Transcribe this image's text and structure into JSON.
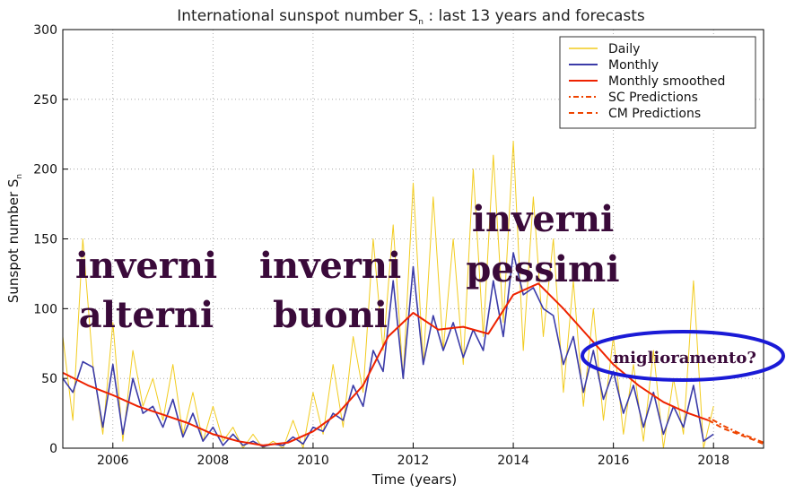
{
  "chart_data": {
    "type": "line",
    "title": "International sunspot number S",
    "title_subscript": "n",
    "title_suffix": " : last 13 years and forecasts",
    "xlabel": "Time (years)",
    "ylabel": "Sunspot number S",
    "ylabel_subscript": "n",
    "xlim": [
      2005.0,
      2019.0
    ],
    "ylim": [
      0,
      300
    ],
    "xticks": [
      2006,
      2008,
      2010,
      2012,
      2014,
      2016,
      2018
    ],
    "yticks": [
      0,
      50,
      100,
      150,
      200,
      250,
      300
    ],
    "grid": true,
    "legend_position": "top-right",
    "colors": {
      "daily": "#f2cc1f",
      "monthly": "#3b3ba8",
      "smoothed": "#ee2200",
      "predictions": "#ee4400",
      "annotation_ellipse": "#1a1ad6",
      "overlay_text": "#3a0a3a"
    },
    "series": [
      {
        "name": "Daily",
        "style": "thin-yellow",
        "x": [
          2005.0,
          2005.2,
          2005.4,
          2005.6,
          2005.8,
          2006.0,
          2006.2,
          2006.4,
          2006.6,
          2006.8,
          2007.0,
          2007.2,
          2007.4,
          2007.6,
          2007.8,
          2008.0,
          2008.2,
          2008.4,
          2008.6,
          2008.8,
          2009.0,
          2009.2,
          2009.4,
          2009.6,
          2009.8,
          2010.0,
          2010.2,
          2010.4,
          2010.6,
          2010.8,
          2011.0,
          2011.2,
          2011.4,
          2011.6,
          2011.8,
          2012.0,
          2012.2,
          2012.4,
          2012.6,
          2012.8,
          2013.0,
          2013.2,
          2013.4,
          2013.6,
          2013.8,
          2014.0,
          2014.2,
          2014.4,
          2014.6,
          2014.8,
          2015.0,
          2015.2,
          2015.4,
          2015.6,
          2015.8,
          2016.0,
          2016.2,
          2016.4,
          2016.6,
          2016.8,
          2017.0,
          2017.2,
          2017.4,
          2017.6,
          2017.8,
          2018.0
        ],
        "values": [
          80,
          20,
          150,
          60,
          10,
          90,
          5,
          70,
          30,
          50,
          20,
          60,
          10,
          40,
          5,
          30,
          5,
          15,
          0,
          10,
          0,
          5,
          0,
          20,
          0,
          40,
          10,
          60,
          15,
          80,
          40,
          150,
          70,
          160,
          50,
          190,
          60,
          180,
          70,
          150,
          60,
          200,
          80,
          210,
          90,
          220,
          70,
          180,
          80,
          150,
          40,
          120,
          30,
          100,
          20,
          80,
          10,
          60,
          5,
          70,
          0,
          50,
          10,
          120,
          0,
          30
        ]
      },
      {
        "name": "Monthly",
        "style": "blue",
        "x": [
          2005.0,
          2005.2,
          2005.4,
          2005.6,
          2005.8,
          2006.0,
          2006.2,
          2006.4,
          2006.6,
          2006.8,
          2007.0,
          2007.2,
          2007.4,
          2007.6,
          2007.8,
          2008.0,
          2008.2,
          2008.4,
          2008.6,
          2008.8,
          2009.0,
          2009.2,
          2009.4,
          2009.6,
          2009.8,
          2010.0,
          2010.2,
          2010.4,
          2010.6,
          2010.8,
          2011.0,
          2011.2,
          2011.4,
          2011.6,
          2011.8,
          2012.0,
          2012.2,
          2012.4,
          2012.6,
          2012.8,
          2013.0,
          2013.2,
          2013.4,
          2013.6,
          2013.8,
          2014.0,
          2014.2,
          2014.4,
          2014.6,
          2014.8,
          2015.0,
          2015.2,
          2015.4,
          2015.6,
          2015.8,
          2016.0,
          2016.2,
          2016.4,
          2016.6,
          2016.8,
          2017.0,
          2017.2,
          2017.4,
          2017.6,
          2017.8,
          2018.0
        ],
        "values": [
          50,
          40,
          62,
          58,
          15,
          60,
          10,
          50,
          25,
          30,
          15,
          35,
          8,
          25,
          5,
          15,
          2,
          10,
          2,
          5,
          1,
          3,
          2,
          8,
          3,
          15,
          12,
          25,
          20,
          45,
          30,
          70,
          55,
          120,
          50,
          130,
          60,
          95,
          70,
          90,
          65,
          85,
          70,
          120,
          80,
          140,
          110,
          115,
          100,
          95,
          60,
          80,
          40,
          70,
          35,
          55,
          25,
          45,
          15,
          40,
          10,
          30,
          15,
          45,
          5,
          10
        ]
      },
      {
        "name": "Monthly smoothed",
        "style": "red",
        "x": [
          2005.0,
          2005.5,
          2006.0,
          2006.5,
          2007.0,
          2007.5,
          2008.0,
          2008.5,
          2009.0,
          2009.5,
          2010.0,
          2010.5,
          2011.0,
          2011.5,
          2012.0,
          2012.5,
          2013.0,
          2013.5,
          2014.0,
          2014.5,
          2015.0,
          2015.5,
          2016.0,
          2016.5,
          2017.0,
          2017.5,
          2017.9
        ],
        "values": [
          54,
          45,
          38,
          30,
          24,
          18,
          10,
          5,
          2,
          4,
          12,
          25,
          45,
          80,
          97,
          85,
          87,
          82,
          110,
          118,
          100,
          80,
          60,
          45,
          33,
          25,
          20
        ]
      },
      {
        "name": "SC Predictions",
        "style": "dotted",
        "x": [
          2017.9,
          2018.2,
          2018.5,
          2018.8,
          2019.0
        ],
        "values": [
          22,
          16,
          11,
          7,
          4
        ]
      },
      {
        "name": "CM Predictions",
        "style": "dashed",
        "x": [
          2017.9,
          2018.2,
          2018.5,
          2018.8,
          2019.0
        ],
        "values": [
          20,
          14,
          10,
          6,
          3
        ]
      }
    ],
    "annotations": [
      {
        "lines": [
          "inverni",
          "alterni"
        ],
        "size": "big"
      },
      {
        "lines": [
          "inverni",
          "buoni"
        ],
        "size": "big"
      },
      {
        "lines": [
          "inverni",
          "pessimi"
        ],
        "size": "big"
      },
      {
        "lines": [
          "miglioramento?"
        ],
        "size": "small",
        "circled": true
      }
    ]
  }
}
